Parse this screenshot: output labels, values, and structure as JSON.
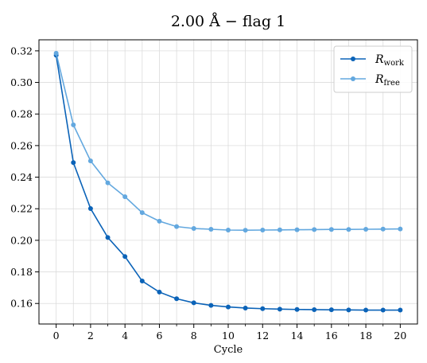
{
  "chart_data": {
    "type": "line",
    "title": "2.00 Å  −  flag 1",
    "xlabel": "Cycle",
    "ylabel": "",
    "xlim": [
      -1,
      21
    ],
    "ylim": [
      0.147,
      0.327
    ],
    "x_ticks": [
      0,
      2,
      4,
      6,
      8,
      10,
      12,
      14,
      16,
      18,
      20
    ],
    "x_minor_ticks": [
      1,
      3,
      5,
      7,
      9,
      11,
      13,
      15,
      17,
      19
    ],
    "y_ticks": [
      0.16,
      0.18,
      0.2,
      0.22,
      0.24,
      0.26,
      0.28,
      0.3,
      0.32
    ],
    "y_tick_labels": [
      "0.16",
      "0.18",
      "0.20",
      "0.22",
      "0.24",
      "0.26",
      "0.28",
      "0.30",
      "0.32"
    ],
    "grid": true,
    "legend_position": "top-right",
    "x": [
      0,
      1,
      2,
      3,
      4,
      5,
      6,
      7,
      8,
      9,
      10,
      11,
      12,
      13,
      14,
      15,
      16,
      17,
      18,
      19,
      20
    ],
    "series": [
      {
        "name": "R",
        "name_sub": "work",
        "color": "#0b63b8",
        "values": [
          0.3172,
          0.2492,
          0.2201,
          0.2018,
          0.1897,
          0.1742,
          0.1672,
          0.163,
          0.1604,
          0.1588,
          0.1578,
          0.1571,
          0.1567,
          0.1564,
          0.1562,
          0.1561,
          0.156,
          0.1559,
          0.1558,
          0.1558,
          0.1558
        ]
      },
      {
        "name": "R",
        "name_sub": "free",
        "color": "#63a8df",
        "values": [
          0.3185,
          0.2731,
          0.2503,
          0.2364,
          0.2276,
          0.2175,
          0.2121,
          0.2087,
          0.2075,
          0.207,
          0.2065,
          0.2064,
          0.2065,
          0.2066,
          0.2067,
          0.2068,
          0.2069,
          0.2069,
          0.207,
          0.2071,
          0.2072
        ]
      }
    ]
  }
}
